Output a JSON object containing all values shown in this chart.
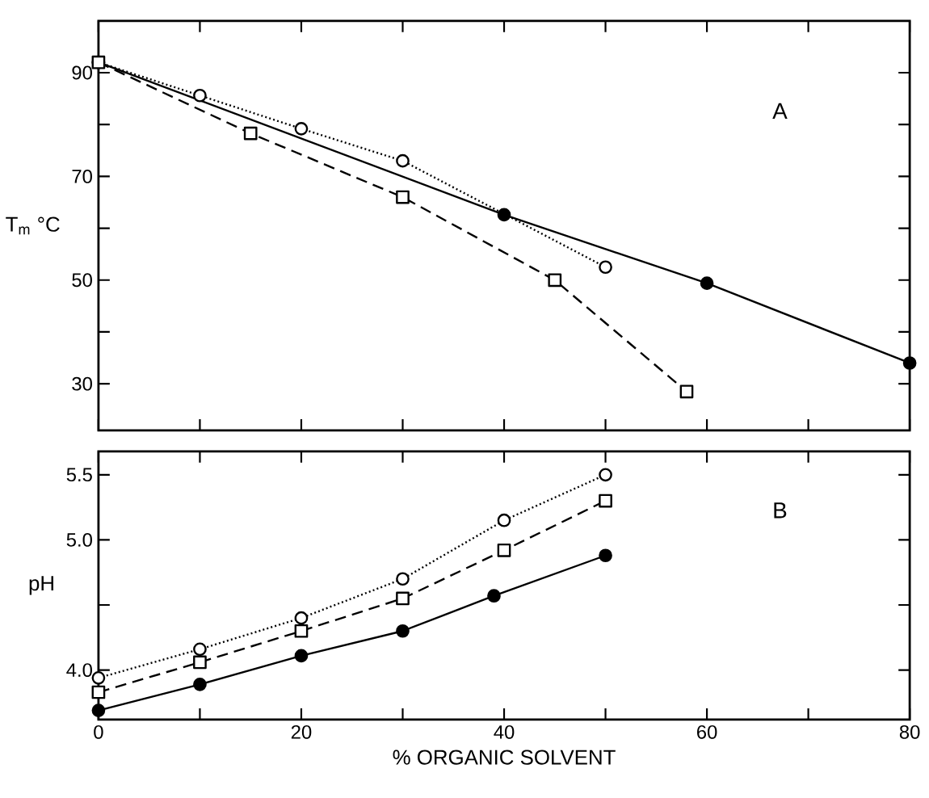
{
  "chart_data": [
    {
      "type": "line",
      "ylabel": "T$_{m}$ °C",
      "annotations": [
        "A"
      ],
      "xlim": [
        0,
        80
      ],
      "ylim": [
        21,
        100
      ],
      "xticks": [
        {
          "value": 0,
          "label": null
        },
        {
          "value": 10,
          "label": null
        },
        {
          "value": 20,
          "label": null
        },
        {
          "value": 30,
          "label": null
        },
        {
          "value": 40,
          "label": null
        },
        {
          "value": 50,
          "label": null
        },
        {
          "value": 60,
          "label": null
        },
        {
          "value": 70,
          "label": null
        },
        {
          "value": 80,
          "label": null
        }
      ],
      "yticks": [
        30,
        {
          "value": 40,
          "label": null
        },
        50,
        {
          "value": 60,
          "label": null
        },
        70,
        {
          "value": 80,
          "label": null
        },
        90
      ],
      "tick_labels": "y",
      "series": [
        {
          "color": "#000000",
          "marker": "circle",
          "line_style": "solid",
          "x": [
            0,
            40,
            60,
            80
          ],
          "values": [
            92,
            62.6,
            49.4,
            34
          ]
        },
        {
          "color": "#000000",
          "marker": "circle",
          "line_style": "dotted",
          "x": [
            0,
            10,
            20,
            30,
            50
          ],
          "values": [
            92,
            85.6,
            79.2,
            73,
            52.5
          ]
        },
        {
          "color": "#000000",
          "marker": "square",
          "line_style": "dashed",
          "x": [
            0,
            15,
            30,
            45,
            58
          ],
          "values": [
            92,
            78.3,
            66,
            50,
            28.5
          ]
        }
      ]
    },
    {
      "type": "line",
      "xlabel": "% ORGANIC SOLVENT",
      "ylabel": "pH",
      "annotations": [
        "B"
      ],
      "xlim": [
        0,
        80
      ],
      "ylim": [
        3.62,
        5.68
      ],
      "xticks": [
        0,
        {
          "value": 10,
          "label": null
        },
        20,
        {
          "value": 30,
          "label": null
        },
        40,
        {
          "value": 50,
          "label": null
        },
        60,
        {
          "value": 70,
          "label": null
        },
        80
      ],
      "yticks": [
        {
          "value": 4,
          "label": "4.0"
        },
        {
          "value": 4.5,
          "label": null
        },
        {
          "value": 5,
          "label": "5.0"
        },
        5.5
      ],
      "series": [
        {
          "color": "#000000",
          "marker": "circle",
          "line_style": "dotted",
          "x": [
            0,
            10,
            20,
            30,
            40,
            50
          ],
          "values": [
            3.94,
            4.16,
            4.4,
            4.7,
            5.15,
            5.5
          ]
        },
        {
          "color": "#000000",
          "marker": "square",
          "line_style": "dashed",
          "x": [
            0,
            10,
            20,
            30,
            40,
            50
          ],
          "values": [
            3.83,
            4.06,
            4.3,
            4.55,
            4.92,
            5.3
          ]
        },
        {
          "color": "#000000",
          "marker": "circle",
          "line_style": "solid",
          "x": [
            0,
            10,
            20,
            30,
            39,
            50
          ],
          "values": [
            3.69,
            3.89,
            4.11,
            4.3,
            4.57,
            4.88
          ]
        }
      ]
    }
  ]
}
